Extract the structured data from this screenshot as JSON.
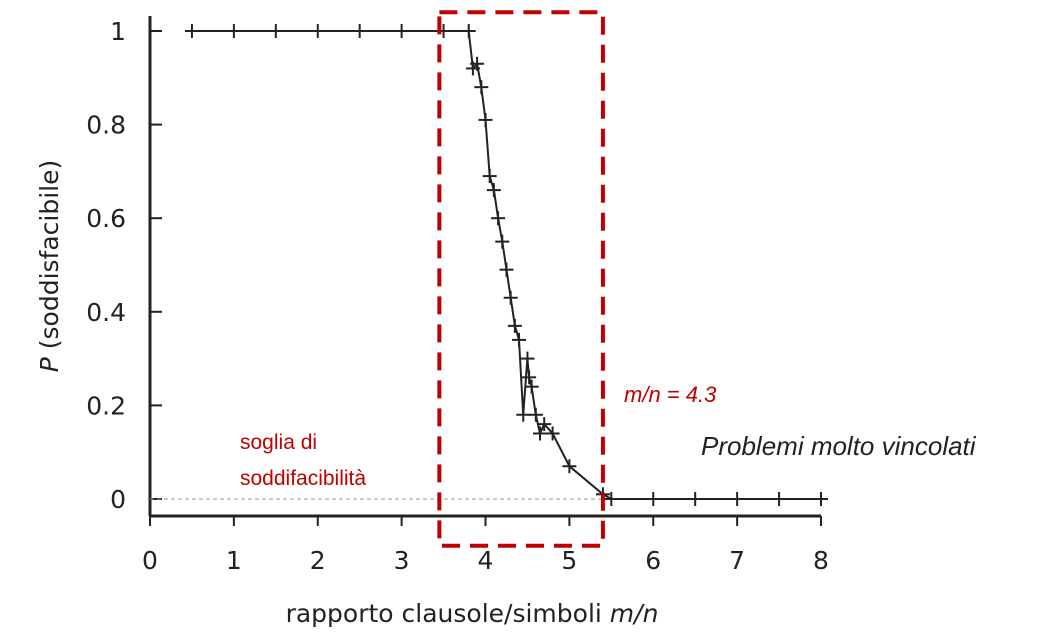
{
  "chart_data": {
    "type": "line",
    "title": "",
    "xlabel": "rapporto clausole/simboli",
    "xlabel_var": "m/n",
    "ylabel": "P",
    "ylabel_paren": "(soddisfacibile)",
    "xlim": [
      0,
      8
    ],
    "ylim": [
      0,
      1
    ],
    "xticks": [
      "0",
      "1",
      "2",
      "3",
      "4",
      "5",
      "6",
      "7",
      "8"
    ],
    "yticks": [
      "0",
      "0.2",
      "0.4",
      "0.6",
      "0.8",
      "1"
    ],
    "grid": false,
    "series": [
      {
        "marker": "plus",
        "color": "#222222",
        "x": [
          0.5,
          1.0,
          1.5,
          2.0,
          2.5,
          3.0,
          3.5,
          3.8,
          3.85,
          3.9,
          3.95,
          4.0,
          4.05,
          4.1,
          4.15,
          4.2,
          4.25,
          4.3,
          4.35,
          4.4,
          4.45,
          4.5,
          4.52,
          4.55,
          4.6,
          4.65,
          4.7,
          4.8,
          5.0,
          5.4,
          5.5,
          6.0,
          6.5,
          7.0,
          7.5,
          8.0
        ],
        "y": [
          1.0,
          1.0,
          1.0,
          1.0,
          1.0,
          1.0,
          1.0,
          1.0,
          0.92,
          0.93,
          0.88,
          0.81,
          0.69,
          0.66,
          0.6,
          0.55,
          0.49,
          0.43,
          0.37,
          0.34,
          0.18,
          0.3,
          0.26,
          0.24,
          0.18,
          0.14,
          0.16,
          0.14,
          0.07,
          0.01,
          0.0,
          0.0,
          0.0,
          0.0,
          0.0,
          0.0
        ]
      }
    ],
    "baseline": {
      "y": 0,
      "style": "dashed",
      "color": "#999999"
    },
    "highlight_box": {
      "x_range": [
        3.45,
        5.4
      ],
      "y_range": [
        -0.1,
        1.04
      ],
      "style": "dashed",
      "color": "#c00000"
    },
    "annotations": {
      "threshold_line1": "soglia di",
      "threshold_line2": "soddifacibilità",
      "ratio_value": "m/n = 4.3",
      "constrained": "Problemi molto vincolati"
    }
  }
}
